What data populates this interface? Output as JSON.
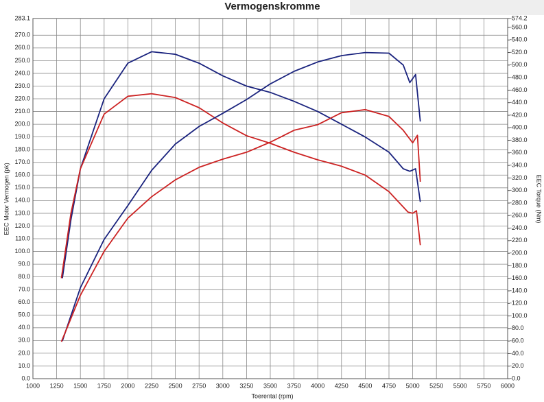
{
  "chart_data": {
    "type": "line",
    "title": "Vermogenskromme",
    "x_label": "Toerental (rpm)",
    "y_label": "EEC Motor Vermogen (pk)",
    "y2_label": "EEC Torque (Nm)",
    "xlim": [
      1000,
      6000
    ],
    "xticks": [
      1000,
      1250,
      1500,
      1750,
      2000,
      2250,
      2500,
      2750,
      3000,
      3250,
      3500,
      3750,
      4000,
      4250,
      4500,
      4750,
      5000,
      5250,
      5500,
      5750,
      6000
    ],
    "ylim": [
      0,
      283.1
    ],
    "yticks": [
      {
        "value": 0,
        "label": "0.0"
      },
      {
        "value": 10,
        "label": "10.0"
      },
      {
        "value": 20,
        "label": "20.0"
      },
      {
        "value": 30,
        "label": "30.0"
      },
      {
        "value": 40,
        "label": "40.0"
      },
      {
        "value": 50,
        "label": "50.0"
      },
      {
        "value": 60,
        "label": "60.0"
      },
      {
        "value": 70,
        "label": "70.0"
      },
      {
        "value": 80,
        "label": "80.0"
      },
      {
        "value": 90,
        "label": "90.0"
      },
      {
        "value": 100,
        "label": "100.0"
      },
      {
        "value": 110,
        "label": "110.0"
      },
      {
        "value": 120,
        "label": "120.0"
      },
      {
        "value": 130,
        "label": "130.0"
      },
      {
        "value": 140,
        "label": "140.0"
      },
      {
        "value": 150,
        "label": "150.0"
      },
      {
        "value": 160,
        "label": "160.0"
      },
      {
        "value": 170,
        "label": "170.0"
      },
      {
        "value": 180,
        "label": "180.0"
      },
      {
        "value": 190,
        "label": "190.0"
      },
      {
        "value": 200,
        "label": "200.0"
      },
      {
        "value": 210,
        "label": "210.0"
      },
      {
        "value": 220,
        "label": "220.0"
      },
      {
        "value": 230,
        "label": "230.0"
      },
      {
        "value": 240,
        "label": "240.0"
      },
      {
        "value": 250,
        "label": "250.0"
      },
      {
        "value": 260,
        "label": "260.0"
      },
      {
        "value": 270,
        "label": "270.0"
      },
      283.1
    ],
    "y2lim": [
      0,
      574.2
    ],
    "y2ticks": [
      {
        "value": 0,
        "label": "-0.0"
      },
      {
        "value": 20,
        "label": "-20.0"
      },
      {
        "value": 40,
        "label": "-40.0"
      },
      {
        "value": 60,
        "label": "-60.0"
      },
      {
        "value": 80,
        "label": "-80.0"
      },
      {
        "value": 100,
        "label": "-100.0"
      },
      {
        "value": 120,
        "label": "-120.0"
      },
      {
        "value": 140,
        "label": "-140.0"
      },
      {
        "value": 160,
        "label": "-160.0"
      },
      {
        "value": 180,
        "label": "-180.0"
      },
      {
        "value": 200,
        "label": "-200.0"
      },
      {
        "value": 220,
        "label": "-220.0"
      },
      {
        "value": 240,
        "label": "-240.0"
      },
      {
        "value": 260,
        "label": "-260.0"
      },
      {
        "value": 280,
        "label": "-280.0"
      },
      {
        "value": 300,
        "label": "-300.0"
      },
      {
        "value": 320,
        "label": "-320.0"
      },
      {
        "value": 340,
        "label": "-340.0"
      },
      {
        "value": 360,
        "label": "-360.0"
      },
      {
        "value": 380,
        "label": "-380.0"
      },
      {
        "value": 400,
        "label": "-400.0"
      },
      {
        "value": 420,
        "label": "-420.0"
      },
      {
        "value": 440,
        "label": "-440.0"
      },
      {
        "value": 460,
        "label": "-460.0"
      },
      {
        "value": 480,
        "label": "-480.0"
      },
      {
        "value": 500,
        "label": "-500.0"
      },
      {
        "value": 520,
        "label": "-520.0"
      },
      {
        "value": 540,
        "label": "-540.0"
      },
      {
        "value": 560,
        "label": "-560.0"
      },
      {
        "value": 574.2,
        "label": "-574.2"
      }
    ],
    "grid": true,
    "series": [
      {
        "color": "#1a237e",
        "x": [
          1310,
          1400,
          1500,
          1750,
          2000,
          2250,
          2500,
          2750,
          3000,
          3250,
          3500,
          3750,
          4000,
          4250,
          4500,
          4750,
          4900,
          4970,
          5030,
          5080
        ],
        "values": [
          79,
          125,
          165,
          220,
          248,
          257,
          255,
          248,
          238,
          230,
          225,
          218,
          210,
          200,
          190,
          178,
          165,
          163,
          165,
          139
        ]
      },
      {
        "color": "#cc2222",
        "x": [
          1300,
          1400,
          1500,
          1750,
          2000,
          2250,
          2500,
          2750,
          3000,
          3250,
          3500,
          3750,
          4000,
          4250,
          4500,
          4750,
          4950,
          5000,
          5040,
          5080
        ],
        "values": [
          79,
          130,
          165,
          208,
          222,
          224,
          221,
          213,
          201,
          191,
          185,
          178,
          172,
          167,
          160,
          147,
          131,
          130,
          132,
          105
        ]
      },
      {
        "color": "#1a237e",
        "axis": "y2",
        "x": [
          1310,
          1500,
          1750,
          2000,
          2250,
          2500,
          2750,
          3000,
          3250,
          3500,
          3750,
          4000,
          4250,
          4500,
          4750,
          4900,
          4970,
          5030,
          5080
        ],
        "values": [
          60,
          145,
          222,
          276,
          332,
          374,
          402,
          423,
          445,
          470,
          490,
          505,
          515,
          520,
          519,
          500,
          472,
          485,
          410
        ]
      },
      {
        "color": "#cc2222",
        "axis": "y2",
        "x": [
          1300,
          1500,
          1750,
          2000,
          2250,
          2500,
          2750,
          3000,
          3250,
          3500,
          3750,
          4000,
          4250,
          4500,
          4750,
          4900,
          5000,
          5050,
          5080
        ],
        "values": [
          59,
          133,
          203,
          256,
          290,
          317,
          337,
          350,
          361,
          377,
          396,
          405,
          424,
          429,
          418,
          396,
          376,
          388,
          314
        ]
      }
    ]
  }
}
